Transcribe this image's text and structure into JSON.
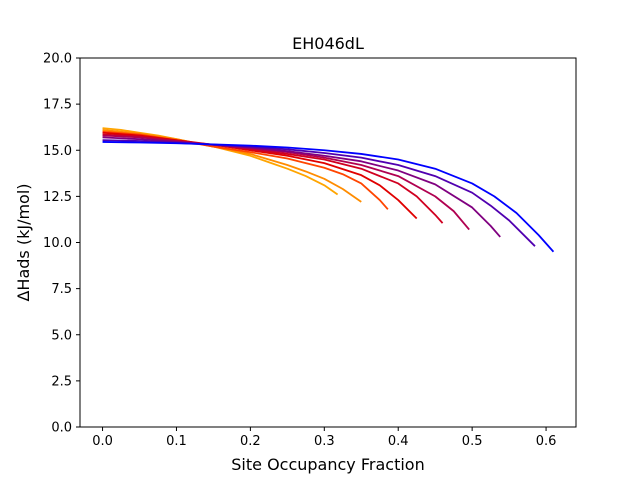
{
  "chart_data": {
    "type": "line",
    "title": "EH046dL",
    "xlabel": "Site Occupancy Fraction",
    "ylabel": "ΔHads (kJ/mol)",
    "xlim": [
      -0.0305,
      0.6405
    ],
    "ylim": [
      0,
      20
    ],
    "xticks": [
      0.0,
      0.1,
      0.2,
      0.3,
      0.4,
      0.5,
      0.6
    ],
    "xtick_labels": [
      "0.0",
      "0.1",
      "0.2",
      "0.3",
      "0.4",
      "0.5",
      "0.6"
    ],
    "yticks": [
      0,
      2.5,
      5,
      7.5,
      10,
      12.5,
      15,
      17.5,
      20
    ],
    "ytick_labels": [
      "0.0",
      "2.5",
      "5.0",
      "7.5",
      "10.0",
      "12.5",
      "15.0",
      "17.5",
      "20.0"
    ],
    "grid": false,
    "legend": "none",
    "series": [
      {
        "color": "#ffa500",
        "x": [
          0.0,
          0.025,
          0.05,
          0.075,
          0.1,
          0.125,
          0.15,
          0.175,
          0.2,
          0.225,
          0.25,
          0.275,
          0.3,
          0.318
        ],
        "y": [
          16.2,
          16.1,
          15.95,
          15.8,
          15.6,
          15.4,
          15.2,
          14.95,
          14.7,
          14.35,
          14.0,
          13.6,
          13.1,
          12.6
        ]
      },
      {
        "color": "#ff8c00",
        "x": [
          0.0,
          0.025,
          0.05,
          0.075,
          0.1,
          0.125,
          0.15,
          0.175,
          0.2,
          0.225,
          0.25,
          0.275,
          0.3,
          0.325,
          0.35
        ],
        "y": [
          16.1,
          16.0,
          15.9,
          15.75,
          15.6,
          15.4,
          15.2,
          15.0,
          14.8,
          14.5,
          14.2,
          13.85,
          13.45,
          12.9,
          12.2
        ]
      },
      {
        "color": "#ff4500",
        "x": [
          0.0,
          0.05,
          0.1,
          0.15,
          0.2,
          0.25,
          0.3,
          0.325,
          0.35,
          0.375,
          0.386
        ],
        "y": [
          16.0,
          15.85,
          15.55,
          15.2,
          14.9,
          14.55,
          14.05,
          13.7,
          13.2,
          12.3,
          11.8
        ]
      },
      {
        "color": "#e00000",
        "x": [
          0.0,
          0.05,
          0.1,
          0.15,
          0.2,
          0.25,
          0.3,
          0.35,
          0.375,
          0.4,
          0.425
        ],
        "y": [
          15.95,
          15.8,
          15.55,
          15.3,
          15.0,
          14.7,
          14.3,
          13.65,
          13.1,
          12.3,
          11.3
        ]
      },
      {
        "color": "#d00020",
        "x": [
          0.0,
          0.05,
          0.1,
          0.15,
          0.2,
          0.25,
          0.3,
          0.35,
          0.4,
          0.425,
          0.45,
          0.46
        ],
        "y": [
          15.85,
          15.75,
          15.5,
          15.3,
          15.05,
          14.8,
          14.5,
          14.0,
          13.2,
          12.5,
          11.5,
          11.05
        ]
      },
      {
        "color": "#b00050",
        "x": [
          0.0,
          0.05,
          0.1,
          0.15,
          0.2,
          0.25,
          0.3,
          0.35,
          0.4,
          0.45,
          0.475,
          0.496
        ],
        "y": [
          15.8,
          15.7,
          15.5,
          15.3,
          15.1,
          14.9,
          14.6,
          14.2,
          13.6,
          12.5,
          11.7,
          10.7
        ]
      },
      {
        "color": "#800080",
        "x": [
          0.0,
          0.05,
          0.1,
          0.15,
          0.2,
          0.25,
          0.3,
          0.35,
          0.4,
          0.45,
          0.5,
          0.525,
          0.538
        ],
        "y": [
          15.7,
          15.6,
          15.45,
          15.3,
          15.15,
          14.95,
          14.7,
          14.4,
          13.9,
          13.15,
          11.9,
          10.9,
          10.3
        ]
      },
      {
        "color": "#5000b0",
        "x": [
          0.0,
          0.05,
          0.1,
          0.15,
          0.2,
          0.25,
          0.3,
          0.35,
          0.4,
          0.45,
          0.5,
          0.525,
          0.55,
          0.585
        ],
        "y": [
          15.55,
          15.5,
          15.4,
          15.3,
          15.2,
          15.05,
          14.85,
          14.6,
          14.2,
          13.6,
          12.7,
          12.0,
          11.2,
          9.8
        ]
      },
      {
        "color": "#0000ff",
        "x": [
          0.0,
          0.05,
          0.1,
          0.15,
          0.2,
          0.25,
          0.3,
          0.35,
          0.4,
          0.45,
          0.5,
          0.53,
          0.56,
          0.59,
          0.61
        ],
        "y": [
          15.45,
          15.42,
          15.38,
          15.32,
          15.25,
          15.15,
          15.0,
          14.8,
          14.5,
          14.0,
          13.2,
          12.5,
          11.6,
          10.4,
          9.5
        ]
      }
    ]
  }
}
